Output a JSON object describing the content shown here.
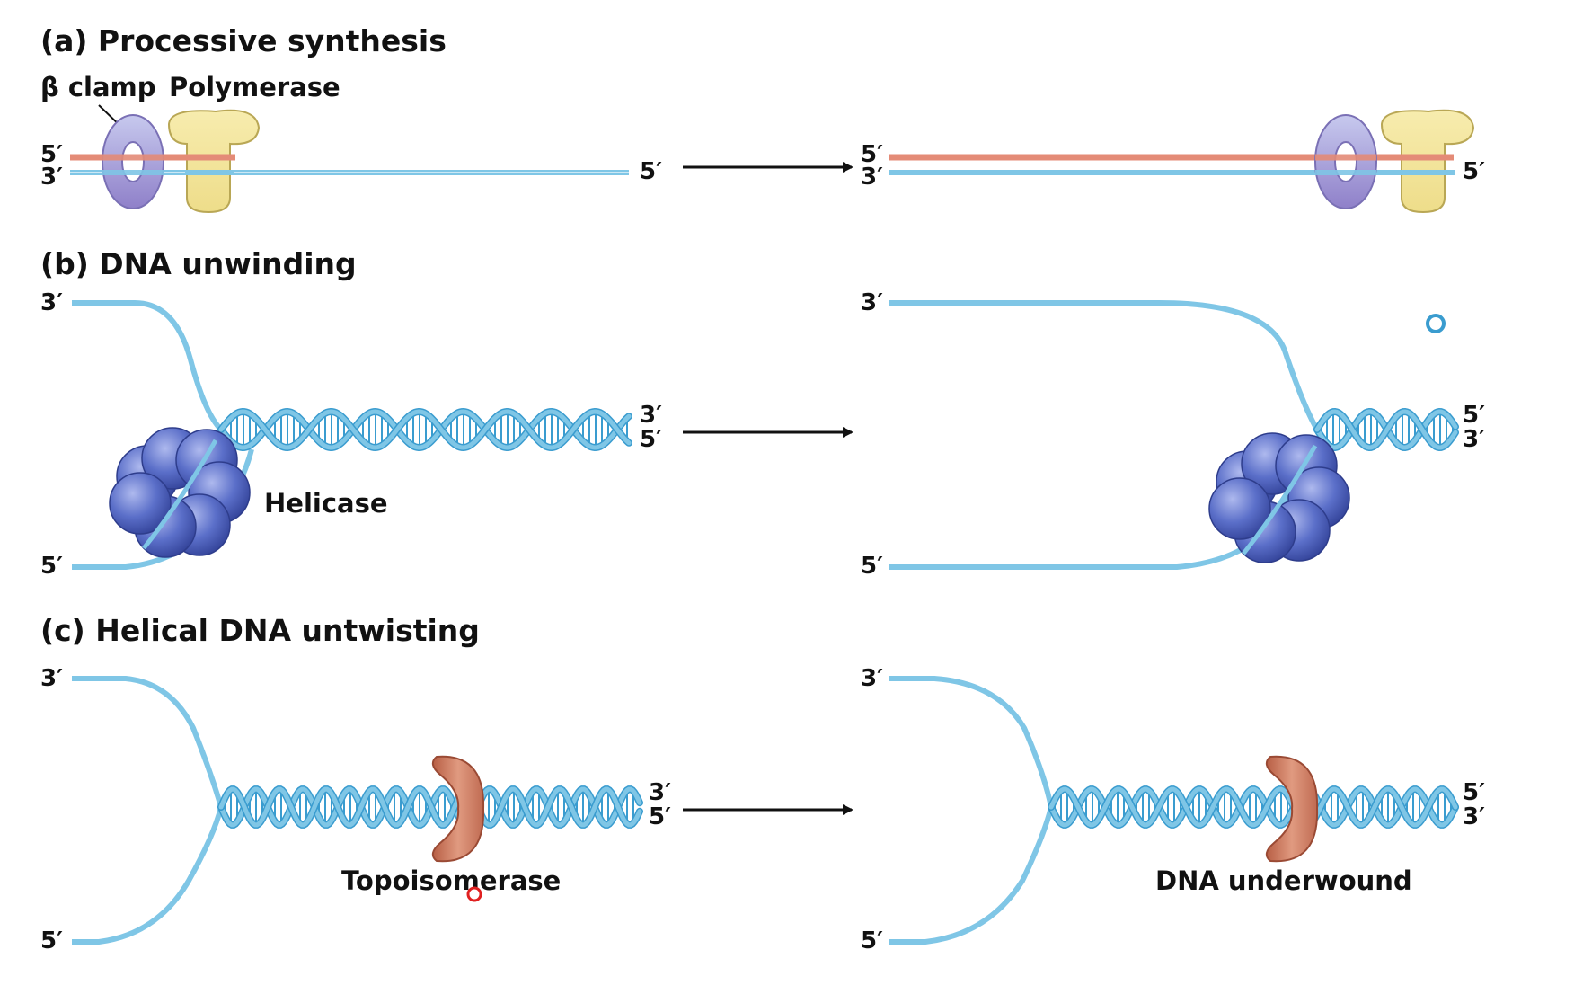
{
  "colors": {
    "dna": "#7fc6e6",
    "dna_dark": "#3a9ccf",
    "new_strand": "#e48b77",
    "clamp": "#b4b4e6",
    "clamp_dark": "#8c7fca",
    "polymerase": "#f4e79a",
    "helicase": "#5b6fc9",
    "topoisomerase": "#d4846a",
    "arrow": "#111111"
  },
  "panel_a": {
    "title": "(a)  Processive synthesis",
    "label_clamp": "β clamp",
    "label_polymerase": "Polymerase",
    "left": {
      "top_end": "5′",
      "bottom_end": "3′",
      "right_end": "5′"
    },
    "right": {
      "top_end": "5′",
      "bottom_end": "3′",
      "right_end": "5′"
    }
  },
  "panel_b": {
    "title": "(b)  DNA unwinding",
    "label_helicase": "Helicase",
    "left": {
      "upper_end": "3′",
      "lower_end": "5′",
      "duplex_top": "3′",
      "duplex_bottom": "5′"
    },
    "right": {
      "upper_end": "3′",
      "lower_end": "5′",
      "duplex_top": "5′",
      "duplex_bottom": "3′"
    }
  },
  "panel_c": {
    "title": "(c)  Helical DNA untwisting",
    "label_topoisomerase": "Topoisomerase",
    "label_underwound": "DNA underwound",
    "left": {
      "upper_end": "3′",
      "lower_end": "5′",
      "duplex_top": "3′",
      "duplex_bottom": "5′"
    },
    "right": {
      "upper_end": "3′",
      "lower_end": "5′",
      "duplex_top": "5′",
      "duplex_bottom": "3′"
    }
  }
}
